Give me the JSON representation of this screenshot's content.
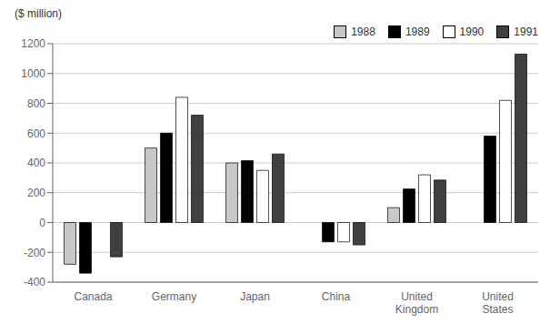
{
  "chart_data": {
    "type": "bar",
    "categories": [
      "Canada",
      "Germany",
      "Japan",
      "China",
      "United\nKingdom",
      "United\nStates"
    ],
    "series": [
      {
        "name": "1988",
        "color": "#c8c8c8",
        "values": [
          -280,
          500,
          400,
          0,
          100,
          0
        ]
      },
      {
        "name": "1989",
        "color": "#000000",
        "values": [
          -340,
          600,
          415,
          -130,
          225,
          580
        ]
      },
      {
        "name": "1990",
        "color": "#ffffff",
        "values": [
          0,
          840,
          350,
          -130,
          320,
          820
        ]
      },
      {
        "name": "1991",
        "color": "#404040",
        "values": [
          -230,
          720,
          460,
          -150,
          285,
          1130
        ]
      }
    ],
    "ylabel": "($ million)",
    "ylim": [
      -400,
      1200
    ],
    "yticks": [
      -400,
      -200,
      0,
      200,
      400,
      600,
      800,
      1000,
      1200
    ],
    "grid": true,
    "legend": "upper right"
  }
}
